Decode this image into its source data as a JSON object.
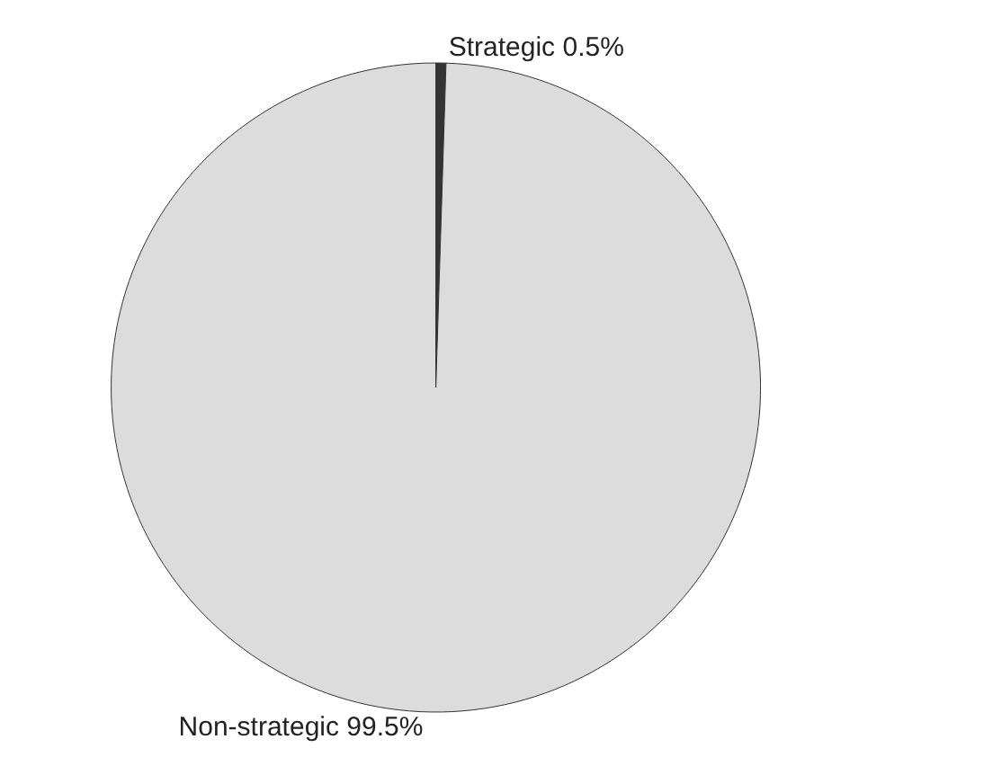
{
  "chart_data": {
    "type": "pie",
    "categories": [
      "Strategic",
      "Non-strategic"
    ],
    "values": [
      0.5,
      99.5
    ],
    "value_labels": [
      "0.5%",
      "99.5%"
    ],
    "colors": [
      "#333333",
      "#dcdcdc"
    ],
    "legend": false
  }
}
